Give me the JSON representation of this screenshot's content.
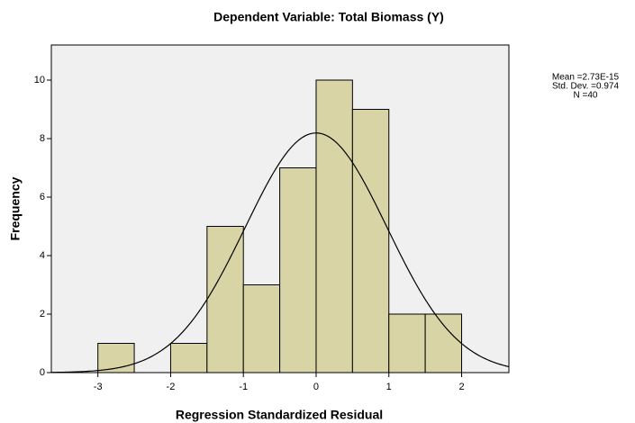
{
  "chart_data": {
    "type": "histogram",
    "title": "Dependent Variable: Total Biomass (Y)",
    "x_label": "Regression Standardized Residual",
    "y_label": "Frequency",
    "bins": [
      -3,
      -2.5,
      -2,
      -1.5,
      -1,
      -0.5,
      0,
      0.5,
      1,
      1.5,
      2
    ],
    "values": [
      1,
      0,
      1,
      5,
      3,
      7,
      10,
      9,
      2,
      2
    ],
    "color": "#d8d4a5",
    "xlim": [
      -3.64,
      2.65
    ],
    "ylim": [
      0,
      11.2
    ],
    "xticks": [
      -3,
      -2,
      -1,
      0,
      1,
      2
    ],
    "yticks": [
      0,
      2,
      4,
      6,
      8,
      10
    ],
    "stats": [
      {
        "value": 2.73e-15,
        "label": "Mean =2.73E-15"
      },
      {
        "value": 0.974,
        "label": "Std. Dev. =0.974"
      },
      {
        "value": 40,
        "label": "N =40"
      }
    ]
  }
}
